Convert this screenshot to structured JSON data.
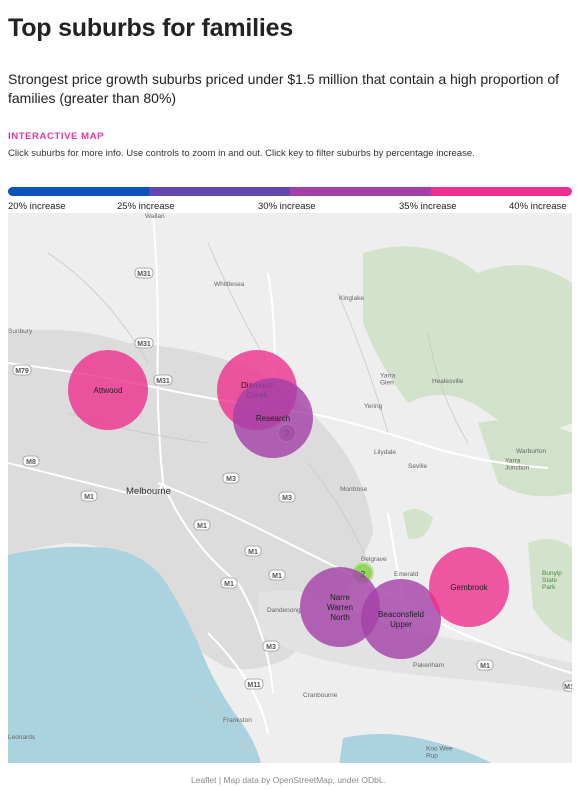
{
  "header": {
    "title": "Top suburbs for families",
    "subtitle": "Strongest price growth suburbs priced under $1.5 million that contain a high proportion of families (greater than 80%)",
    "kicker": "INTERACTIVE MAP",
    "instructions": "Click suburbs for more info. Use controls to zoom in and out. Click key to filter suburbs by percentage increase."
  },
  "key": {
    "segments": [
      "#0a54b8",
      "#6248b0",
      "#a240a7",
      "#ef2f8f"
    ],
    "labels": [
      "20% increase",
      "25% increase",
      "30% increase",
      "35% increase",
      "40% increase"
    ]
  },
  "map": {
    "base_labels": {
      "wallan": "Wallan",
      "whittlesea": "Whittlesea",
      "kinglake": "Kinglake",
      "sunbury": "Sunbury",
      "yarra_glen": "Yarra\nGlen",
      "healesville": "Healesville",
      "yering": "Yering",
      "lilydale": "Lilydale",
      "seville": "Seville",
      "warburton": "Warburton",
      "yarra_junction": "Yarra\nJunction",
      "melbourne": "Melbourne",
      "montrose": "Montrose",
      "belgrave": "Belgrave",
      "emerald": "Emerald",
      "dandenong": "Dandenong",
      "pakenham": "Pakenham",
      "cranbourne": "Cranbourne",
      "frankston": "Frankston",
      "leonards": "Leonards",
      "koo_wee_rup": "Koo Wee\nRup",
      "bunyip": "Bunyip\nState\nPark"
    },
    "roads": [
      "M31",
      "M31",
      "M31",
      "M79",
      "M8",
      "M1",
      "M1",
      "M3",
      "M3",
      "M1",
      "M1",
      "M1",
      "M3",
      "M11",
      "M1",
      "M1"
    ],
    "suburbs": [
      {
        "name": "Attwood",
        "color": "#ef2f8f"
      },
      {
        "name": "Diamond\nCreek",
        "color": "#ef2f8f"
      },
      {
        "name": "Research",
        "color": "#a240a7"
      },
      {
        "name": "Narre\nWarren\nNorth",
        "color": "#a240a7"
      },
      {
        "name": "Beaconsfield\nUpper",
        "color": "#a240a7"
      },
      {
        "name": "Gembrook",
        "color": "#ef2f8f"
      }
    ],
    "clusters": [
      {
        "count": "2",
        "color": "#9e9e9e"
      },
      {
        "count": "2",
        "color": "#8fd35a"
      }
    ]
  },
  "attribution": {
    "leaflet": "Leaflet",
    "sep": " | ",
    "text": "Map data by OpenStreetMap, under ODbL."
  }
}
